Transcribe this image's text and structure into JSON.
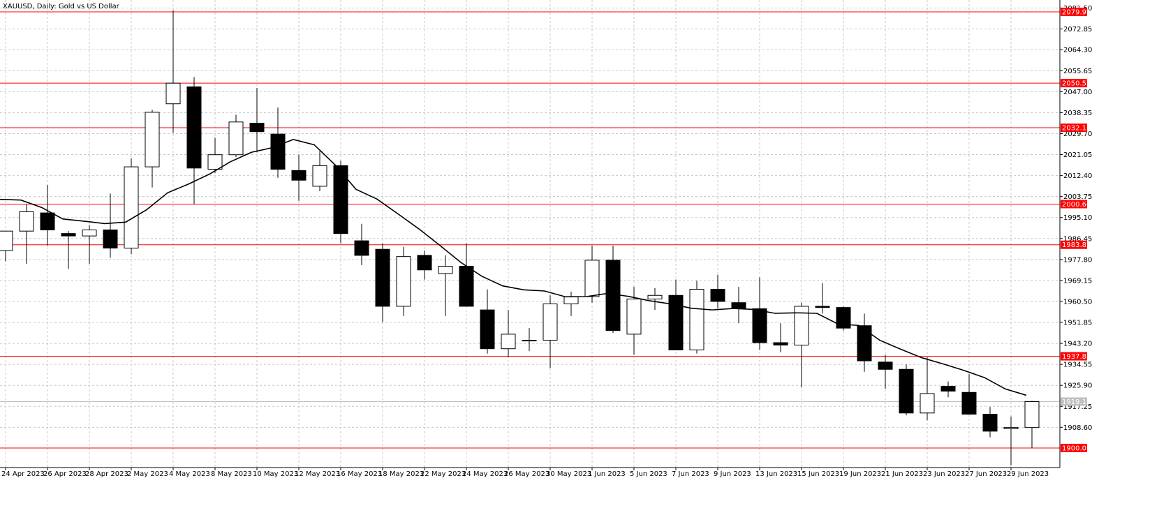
{
  "chart_data": {
    "type": "candlestick",
    "title": "XAUUSD, Daily:  Gold vs US Dollar",
    "ylim": [
      1892.0,
      2084.8
    ],
    "y_ticks": [
      2081.5,
      2072.85,
      2064.3,
      2055.65,
      2047.0,
      2038.35,
      2029.7,
      2021.05,
      2012.4,
      2003.75,
      1995.1,
      1986.45,
      1977.8,
      1969.15,
      1960.5,
      1951.85,
      1943.2,
      1934.55,
      1925.9,
      1917.25,
      1908.6
    ],
    "x_tick_labels": [
      "24 Apr 2023",
      "26 Apr 2023",
      "28 Apr 2023",
      "2 May 2023",
      "4 May 2023",
      "8 May 2023",
      "10 May 2023",
      "12 May 2023",
      "16 May 2023",
      "18 May 2023",
      "22 May 2023",
      "24 May 2023",
      "26 May 2023",
      "30 May 2023",
      "1 Jun 2023",
      "5 Jun 2023",
      "7 Jun 2023",
      "9 Jun 2023",
      "13 Jun 2023",
      "15 Jun 2023",
      "19 Jun 2023",
      "21 Jun 2023",
      "23 Jun 2023",
      "27 Jun 2023",
      "29 Jun 2023"
    ],
    "horizontal_levels": [
      {
        "value": 2079.91,
        "label": "2079.91",
        "color": "#ff0000"
      },
      {
        "value": 2050.52,
        "label": "2050.52",
        "color": "#ff0000"
      },
      {
        "value": 2032.13,
        "label": "2032.13",
        "color": "#ff0000"
      },
      {
        "value": 2000.64,
        "label": "2000.64",
        "color": "#ff0000"
      },
      {
        "value": 1983.87,
        "label": "1983.87",
        "color": "#ff0000"
      },
      {
        "value": 1937.88,
        "label": "1937.88",
        "color": "#ff0000"
      },
      {
        "value": 1900.07,
        "label": "1900.07",
        "color": "#ff0000"
      }
    ],
    "current_price": {
      "value": 1919.19,
      "label": "1919.19",
      "color": "#c0c0c0"
    },
    "colors": {
      "bull": "#ffffff",
      "bear": "#000000",
      "outline": "#000000",
      "ma": "#000000",
      "grid": "#c8c8c8",
      "background": "#ffffff"
    },
    "candles": [
      {
        "o": 1981.5,
        "h": 1988.5,
        "l": 1977.0,
        "c": 1989.5
      },
      {
        "o": 1989.5,
        "h": 2000.5,
        "l": 1976.0,
        "c": 1997.5
      },
      {
        "o": 1997.0,
        "h": 2008.5,
        "l": 1983.5,
        "c": 1990.0
      },
      {
        "o": 1988.5,
        "h": 1989.5,
        "l": 1974.0,
        "c": 1987.5
      },
      {
        "o": 1987.5,
        "h": 1992.0,
        "l": 1976.0,
        "c": 1990.0
      },
      {
        "o": 1990.0,
        "h": 2005.0,
        "l": 1978.5,
        "c": 1982.5
      },
      {
        "o": 1982.5,
        "h": 2019.5,
        "l": 1980.0,
        "c": 2016.0
      },
      {
        "o": 2016.0,
        "h": 2039.5,
        "l": 2007.5,
        "c": 2038.5
      },
      {
        "o": 2042.0,
        "h": 2080.5,
        "l": 2030.0,
        "c": 2050.5
      },
      {
        "o": 2049.0,
        "h": 2053.0,
        "l": 2000.5,
        "c": 2015.5
      },
      {
        "o": 2015.0,
        "h": 2028.0,
        "l": 2013.5,
        "c": 2021.0
      },
      {
        "o": 2021.0,
        "h": 2037.5,
        "l": 2020.0,
        "c": 2034.5
      },
      {
        "o": 2034.0,
        "h": 2048.5,
        "l": 2022.0,
        "c": 2030.5
      },
      {
        "o": 2029.5,
        "h": 2040.5,
        "l": 2011.5,
        "c": 2015.0
      },
      {
        "o": 2014.5,
        "h": 2021.0,
        "l": 2002.0,
        "c": 2010.5
      },
      {
        "o": 2008.0,
        "h": 2022.5,
        "l": 2006.0,
        "c": 2016.5
      },
      {
        "o": 2016.5,
        "h": 2018.5,
        "l": 1984.5,
        "c": 1988.5
      },
      {
        "o": 1985.5,
        "h": 1992.5,
        "l": 1975.5,
        "c": 1979.5
      },
      {
        "o": 1982.0,
        "h": 1984.5,
        "l": 1952.0,
        "c": 1958.5
      },
      {
        "o": 1958.5,
        "h": 1983.0,
        "l": 1954.5,
        "c": 1979.0
      },
      {
        "o": 1979.5,
        "h": 1981.5,
        "l": 1969.5,
        "c": 1973.5
      },
      {
        "o": 1972.0,
        "h": 1979.5,
        "l": 1954.5,
        "c": 1975.0
      },
      {
        "o": 1975.0,
        "h": 1984.5,
        "l": 1958.5,
        "c": 1958.5
      },
      {
        "o": 1957.0,
        "h": 1965.5,
        "l": 1939.0,
        "c": 1941.0
      },
      {
        "o": 1941.0,
        "h": 1957.0,
        "l": 1937.5,
        "c": 1947.0
      },
      {
        "o": 1944.5,
        "h": 1949.5,
        "l": 1940.0,
        "c": 1944.5
      },
      {
        "o": 1944.5,
        "h": 1963.0,
        "l": 1933.0,
        "c": 1959.5
      },
      {
        "o": 1959.5,
        "h": 1964.5,
        "l": 1954.5,
        "c": 1962.5
      },
      {
        "o": 1962.5,
        "h": 1983.5,
        "l": 1960.0,
        "c": 1977.5
      },
      {
        "o": 1977.5,
        "h": 1983.5,
        "l": 1947.5,
        "c": 1948.5
      },
      {
        "o": 1947.0,
        "h": 1966.5,
        "l": 1938.5,
        "c": 1961.5
      },
      {
        "o": 1961.5,
        "h": 1966.0,
        "l": 1957.0,
        "c": 1963.0
      },
      {
        "o": 1963.0,
        "h": 1969.5,
        "l": 1940.5,
        "c": 1940.5
      },
      {
        "o": 1940.5,
        "h": 1969.0,
        "l": 1939.0,
        "c": 1965.5
      },
      {
        "o": 1965.5,
        "h": 1971.5,
        "l": 1957.5,
        "c": 1960.5
      },
      {
        "o": 1960.0,
        "h": 1966.5,
        "l": 1951.5,
        "c": 1957.5
      },
      {
        "o": 1957.5,
        "h": 1970.5,
        "l": 1940.5,
        "c": 1943.5
      },
      {
        "o": 1943.5,
        "h": 1951.5,
        "l": 1939.5,
        "c": 1942.5
      },
      {
        "o": 1942.5,
        "h": 1960.0,
        "l": 1925.0,
        "c": 1958.5
      },
      {
        "o": 1958.5,
        "h": 1968.0,
        "l": 1955.5,
        "c": 1958.0
      },
      {
        "o": 1958.0,
        "h": 1958.5,
        "l": 1948.5,
        "c": 1949.5
      },
      {
        "o": 1950.5,
        "h": 1955.5,
        "l": 1931.5,
        "c": 1936.0
      },
      {
        "o": 1935.5,
        "h": 1938.5,
        "l": 1924.5,
        "c": 1932.5
      },
      {
        "o": 1932.5,
        "h": 1934.5,
        "l": 1913.5,
        "c": 1914.5
      },
      {
        "o": 1914.5,
        "h": 1937.5,
        "l": 1911.5,
        "c": 1922.5
      },
      {
        "o": 1925.5,
        "h": 1927.5,
        "l": 1921.0,
        "c": 1923.5
      },
      {
        "o": 1923.0,
        "h": 1930.5,
        "l": 1914.0,
        "c": 1914.0
      },
      {
        "o": 1914.0,
        "h": 1917.0,
        "l": 1904.5,
        "c": 1907.0
      },
      {
        "o": 1908.0,
        "h": 1913.0,
        "l": 1893.0,
        "c": 1908.5
      },
      {
        "o": 1908.5,
        "h": 1919.5,
        "l": 1900.0,
        "c": 1919.2
      }
    ],
    "moving_average": [
      2002.6,
      2002.3,
      1999.2,
      1994.5,
      1993.6,
      1992.6,
      1993.2,
      1998.3,
      2005.3,
      2008.9,
      2013.0,
      2018.1,
      2022.0,
      2023.9,
      2027.3,
      2025.1,
      2016.8,
      2006.7,
      2002.7,
      1996.6,
      1990.4,
      1983.6,
      1976.6,
      1970.9,
      1966.9,
      1965.3,
      1964.8,
      1962.4,
      1962.5,
      1963.8,
      1962.6,
      1960.8,
      1959.5,
      1957.7,
      1957.0,
      1957.6,
      1957.2,
      1955.6,
      1955.8,
      1955.6,
      1951.2,
      1950.6,
      1944.5,
      1940.8,
      1937.3,
      1934.8,
      1932.1,
      1929.1,
      1924.4,
      1921.8
    ]
  }
}
